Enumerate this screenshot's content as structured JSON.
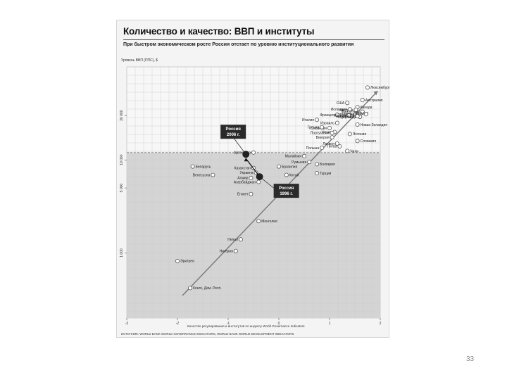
{
  "figure": {
    "title": "Количество и качество: ВВП и институты",
    "subtitle": "При быстром экономическом росте Россия отстает по уровню институционального развития",
    "ylabel": "Уровень ВВП (ППС), $",
    "xlabel": "Качество регулирования и институтов по индексу World Governance Indicators",
    "source": "ИСТОЧНИК: WORLD BANK WORLD GOVERNANCE INDICATORS, WORLD BANK WORLD DEVELOPMENT INDICATORS"
  },
  "page_number": "33",
  "chart_data": {
    "type": "scatter",
    "xlim": [
      -3,
      2
    ],
    "ylim": [
      200,
      100000
    ],
    "yscale": "log",
    "xticks": [
      "-3",
      "-2",
      "-1",
      "0",
      "1",
      "2"
    ],
    "yticks": [
      {
        "value": 1000,
        "label": "1 000"
      },
      {
        "value": 5000,
        "label": "5 000"
      },
      {
        "value": 10000,
        "label": "10 000"
      },
      {
        "value": 30000,
        "label": "30 000"
      }
    ],
    "grid": true,
    "shaded_region_below": 12000,
    "trend_line": {
      "from": [
        -1.9,
        350
      ],
      "to": [
        1.95,
        55000
      ]
    },
    "countries": [
      {
        "name": "Люксембург",
        "x": 1.75,
        "y": 60000
      },
      {
        "name": "США",
        "x": 1.35,
        "y": 41000
      },
      {
        "name": "Австралия",
        "x": 1.65,
        "y": 44000
      },
      {
        "name": "Канада",
        "x": 1.55,
        "y": 37000
      },
      {
        "name": "Финляндия",
        "x": 1.65,
        "y": 33000
      },
      {
        "name": "Австрия",
        "x": 1.52,
        "y": 34500
      },
      {
        "name": "Исландия",
        "x": 1.4,
        "y": 35000
      },
      {
        "name": "Германия",
        "x": 1.5,
        "y": 31000
      },
      {
        "name": "Бельгия",
        "x": 1.45,
        "y": 32000
      },
      {
        "name": "Франция",
        "x": 1.15,
        "y": 30500
      },
      {
        "name": "Швейцария",
        "x": 1.72,
        "y": 31000
      },
      {
        "name": "Япония",
        "x": 1.38,
        "y": 30000
      },
      {
        "name": "Италия",
        "x": 0.75,
        "y": 27000
      },
      {
        "name": "Нидерланды",
        "x": 1.6,
        "y": 29000
      },
      {
        "name": "Швеция",
        "x": 1.55,
        "y": 29500
      },
      {
        "name": "Израиль",
        "x": 1.15,
        "y": 25000
      },
      {
        "name": "Словения",
        "x": 1.0,
        "y": 22000
      },
      {
        "name": "Греция",
        "x": 0.85,
        "y": 22500
      },
      {
        "name": "Чехия",
        "x": 1.1,
        "y": 20000
      },
      {
        "name": "Эстония",
        "x": 1.4,
        "y": 19000
      },
      {
        "name": "Португалия",
        "x": 1.05,
        "y": 19500
      },
      {
        "name": "Новая Зеландия",
        "x": 1.55,
        "y": 24000
      },
      {
        "name": "Венгрия",
        "x": 1.05,
        "y": 17500
      },
      {
        "name": "Словакия",
        "x": 1.55,
        "y": 16000
      },
      {
        "name": "Польша",
        "x": 0.85,
        "y": 13500
      },
      {
        "name": "Латвия",
        "x": 1.15,
        "y": 15000
      },
      {
        "name": "Литва",
        "x": 1.2,
        "y": 14000
      },
      {
        "name": "Чили",
        "x": 1.35,
        "y": 12500
      },
      {
        "name": "Аргентина",
        "x": -0.5,
        "y": 12000
      },
      {
        "name": "Малайзия",
        "x": 0.5,
        "y": 11000
      },
      {
        "name": "Румыния",
        "x": 0.6,
        "y": 9500
      },
      {
        "name": "Болгария",
        "x": 0.75,
        "y": 9000
      },
      {
        "name": "Бразилия",
        "x": 0.0,
        "y": 8500
      },
      {
        "name": "Беларусь",
        "x": -1.7,
        "y": 8500
      },
      {
        "name": "Казахстан",
        "x": -0.5,
        "y": 8200
      },
      {
        "name": "Украина",
        "x": -0.45,
        "y": 7300
      },
      {
        "name": "Китай",
        "x": 0.15,
        "y": 6900
      },
      {
        "name": "Турция",
        "x": 0.75,
        "y": 7200
      },
      {
        "name": "Венесуэла",
        "x": -1.3,
        "y": 6900
      },
      {
        "name": "Алжир",
        "x": -0.55,
        "y": 6400
      },
      {
        "name": "Азербайджан",
        "x": -0.4,
        "y": 5800
      },
      {
        "name": "Египет",
        "x": -0.55,
        "y": 4300
      },
      {
        "name": "Монголия",
        "x": -0.4,
        "y": 2200
      },
      {
        "name": "Непал",
        "x": -0.75,
        "y": 1400
      },
      {
        "name": "Нигерия",
        "x": -0.85,
        "y": 1050
      },
      {
        "name": "Эритрея",
        "x": -2.0,
        "y": 820
      },
      {
        "name": "Конго, Дем. Респ.",
        "x": -1.75,
        "y": 420
      }
    ],
    "russia": {
      "points": [
        {
          "name": "Россия 1996 г.",
          "x": -0.38,
          "y": 6600
        },
        {
          "name": "Россия 2006 г.",
          "x": -0.65,
          "y": 11500
        }
      ]
    }
  }
}
